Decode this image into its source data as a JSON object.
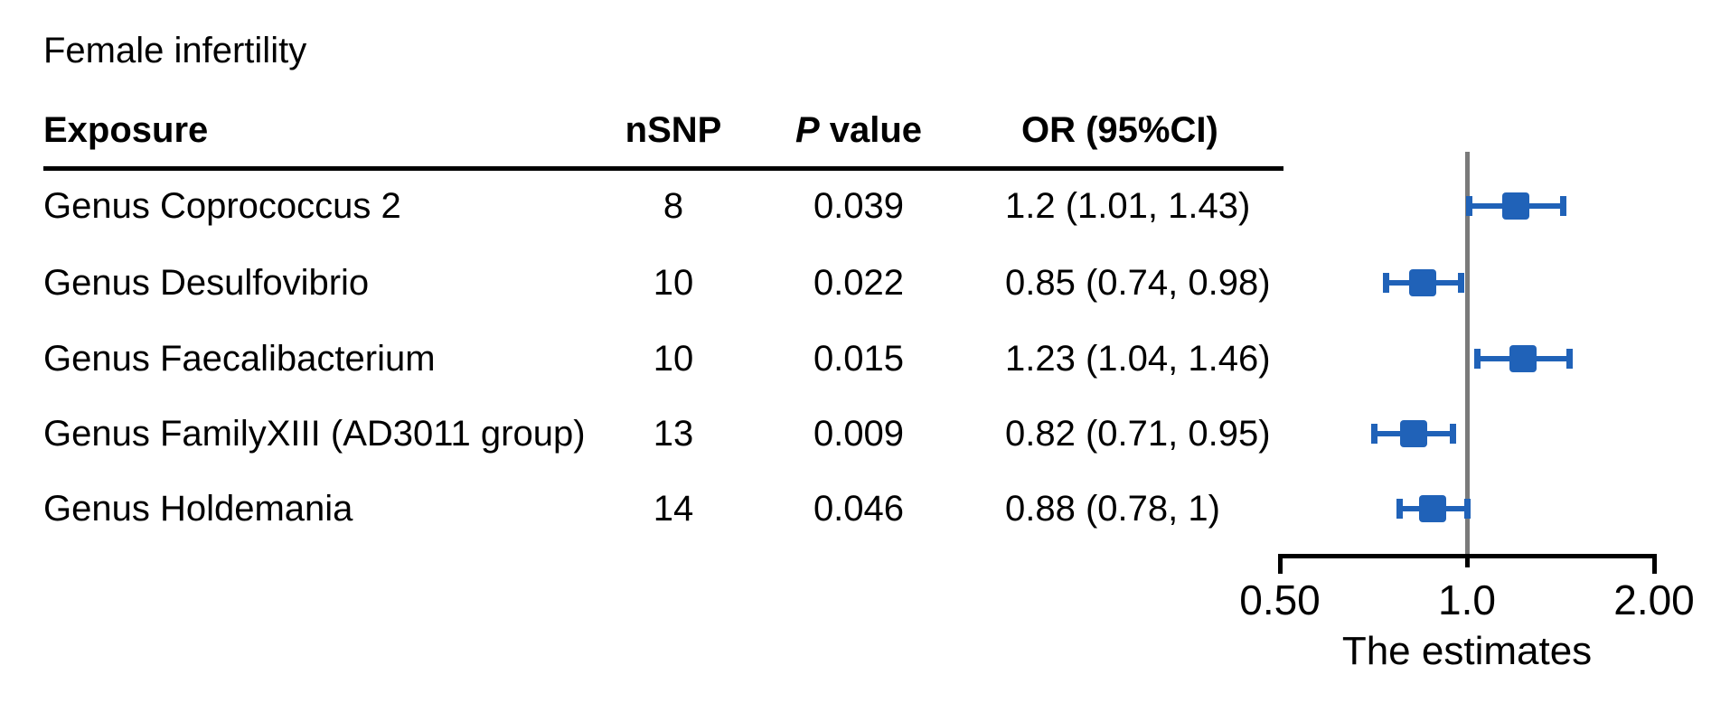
{
  "figure": {
    "title": "Female infertility"
  },
  "table": {
    "headers": {
      "exposure": "Exposure",
      "nsnp": "nSNP",
      "p_italic": "P",
      "p_rest": " value",
      "or_ci": "OR (95%CI)"
    },
    "rows": [
      {
        "exposure": "Genus Coprococcus 2",
        "nsnp": "8",
        "p_value": "0.039",
        "or_ci": "1.2 (1.01, 1.43)",
        "or": 1.2,
        "ci_low": 1.01,
        "ci_high": 1.43
      },
      {
        "exposure": "Genus Desulfovibrio",
        "nsnp": "10",
        "p_value": "0.022",
        "or_ci": "0.85 (0.74, 0.98)",
        "or": 0.85,
        "ci_low": 0.74,
        "ci_high": 0.98
      },
      {
        "exposure": "Genus Faecalibacterium",
        "nsnp": "10",
        "p_value": "0.015",
        "or_ci": "1.23 (1.04, 1.46)",
        "or": 1.23,
        "ci_low": 1.04,
        "ci_high": 1.46
      },
      {
        "exposure": "Genus FamilyXIII (AD3011 group)",
        "nsnp": "13",
        "p_value": "0.009",
        "or_ci": "0.82 (0.71, 0.95)",
        "or": 0.82,
        "ci_low": 0.71,
        "ci_high": 0.95
      },
      {
        "exposure": "Genus Holdemania",
        "nsnp": "14",
        "p_value": "0.046",
        "or_ci": "0.88 (0.78, 1)",
        "or": 0.88,
        "ci_low": 0.78,
        "ci_high": 1.0
      }
    ]
  },
  "chart_data": {
    "type": "scatter",
    "variant": "forest-plot",
    "title": "Female infertility",
    "xlabel": "The estimates",
    "x_scale": "log",
    "xlim": [
      0.5,
      2.0
    ],
    "x_ticks": [
      0.5,
      1.0,
      2.0
    ],
    "x_tick_labels": [
      "0.50",
      "1.0",
      "2.00"
    ],
    "reference_line": 1.0,
    "grid": false,
    "legend": "none",
    "points": [
      {
        "label": "Genus Coprococcus 2",
        "or": 1.2,
        "ci": [
          1.01,
          1.43
        ]
      },
      {
        "label": "Genus Desulfovibrio",
        "or": 0.85,
        "ci": [
          0.74,
          0.98
        ]
      },
      {
        "label": "Genus Faecalibacterium",
        "or": 1.23,
        "ci": [
          1.04,
          1.46
        ]
      },
      {
        "label": "Genus FamilyXIII (AD3011 group)",
        "or": 0.82,
        "ci": [
          0.71,
          0.95
        ]
      },
      {
        "label": "Genus Holdemania",
        "or": 0.88,
        "ci": [
          0.78,
          1.0
        ]
      }
    ],
    "colors": {
      "marker": "#2062B8",
      "reference_line": "#7a7a7a",
      "axis": "#000000",
      "text": "#000000"
    }
  }
}
